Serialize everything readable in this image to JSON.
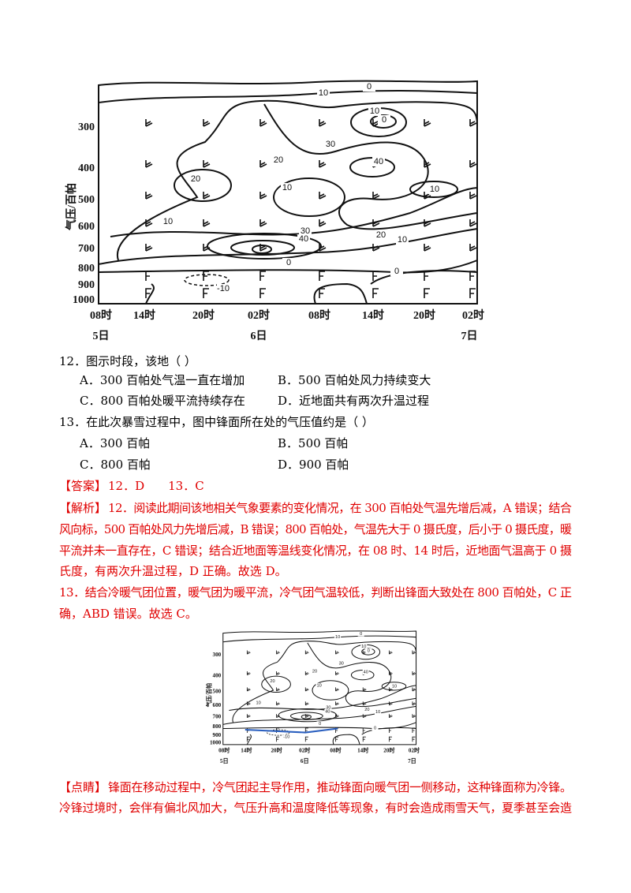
{
  "figure": {
    "y_axis_title": "气压/百帕",
    "y_labels": [
      "300",
      "400",
      "500",
      "600",
      "700",
      "800",
      "900",
      "1000"
    ],
    "x_labels": [
      "08时",
      "14时",
      "20时",
      "02时",
      "08时",
      "14时",
      "20时",
      "02时"
    ],
    "day_labels": [
      "5日",
      "6日",
      "7日"
    ],
    "contour_labels": [
      "0",
      "10",
      "10",
      "0",
      "30",
      "40",
      "20",
      "10",
      "20",
      "10",
      "10",
      "30",
      "40",
      "20",
      "10",
      "0",
      "0",
      "-10"
    ]
  },
  "questions": [
    {
      "stem": "12．图示时段，该地（    ）",
      "options": [
        "A．300 百帕处气温一直在增加",
        "B．500 百帕处风力持续变大",
        "C．800 百帕处暖平流持续存在",
        "D．近地面共有两次升温过程"
      ]
    },
    {
      "stem": "13．在此次暴雪过程中，图中锋面所在处的气压值约是（    ）",
      "options": [
        "A．300 百帕",
        "B．500 百帕",
        "C．800 百帕",
        "D．900 百帕"
      ]
    }
  ],
  "answer": {
    "tag": "【答案】",
    "text": "12．D　　13．C"
  },
  "analysis": {
    "tag": "【解析】",
    "lines": [
      "12．阅读此期间该地相关气象要素的变化情况，在 300 百帕处气温先增后减，A 错误；结合",
      "风向标，500 百帕处风力先增后减，B 错误；800 百帕处，气温先大于 0 摄氏度，后小于 0 摄氏度，暖",
      "平流并未一直存在，C 错误；结合近地面等温线变化情况，在 08 时、14 时后，近地面气温高于 0 摄",
      "氏度，有两次升温过程，D 正确。故选 D。",
      "13．结合冷暖气团位置，暖气团为暖平流，冷气团气温较低，判断出锋面大致处在 800 百帕处，C 正",
      "确，ABD 错误。故选 C。"
    ]
  },
  "tip": {
    "tag": "【点睛】",
    "lines": [
      "锋面在移动过程中，冷气团起主导作用，推动锋面向暖气团一侧移动，这种锋面称为冷锋。",
      "冷锋过境时，会伴有偏北风加大，气压升高和温度降低等现象，有时会造成雨雪天气，夏季甚至会造"
    ]
  }
}
